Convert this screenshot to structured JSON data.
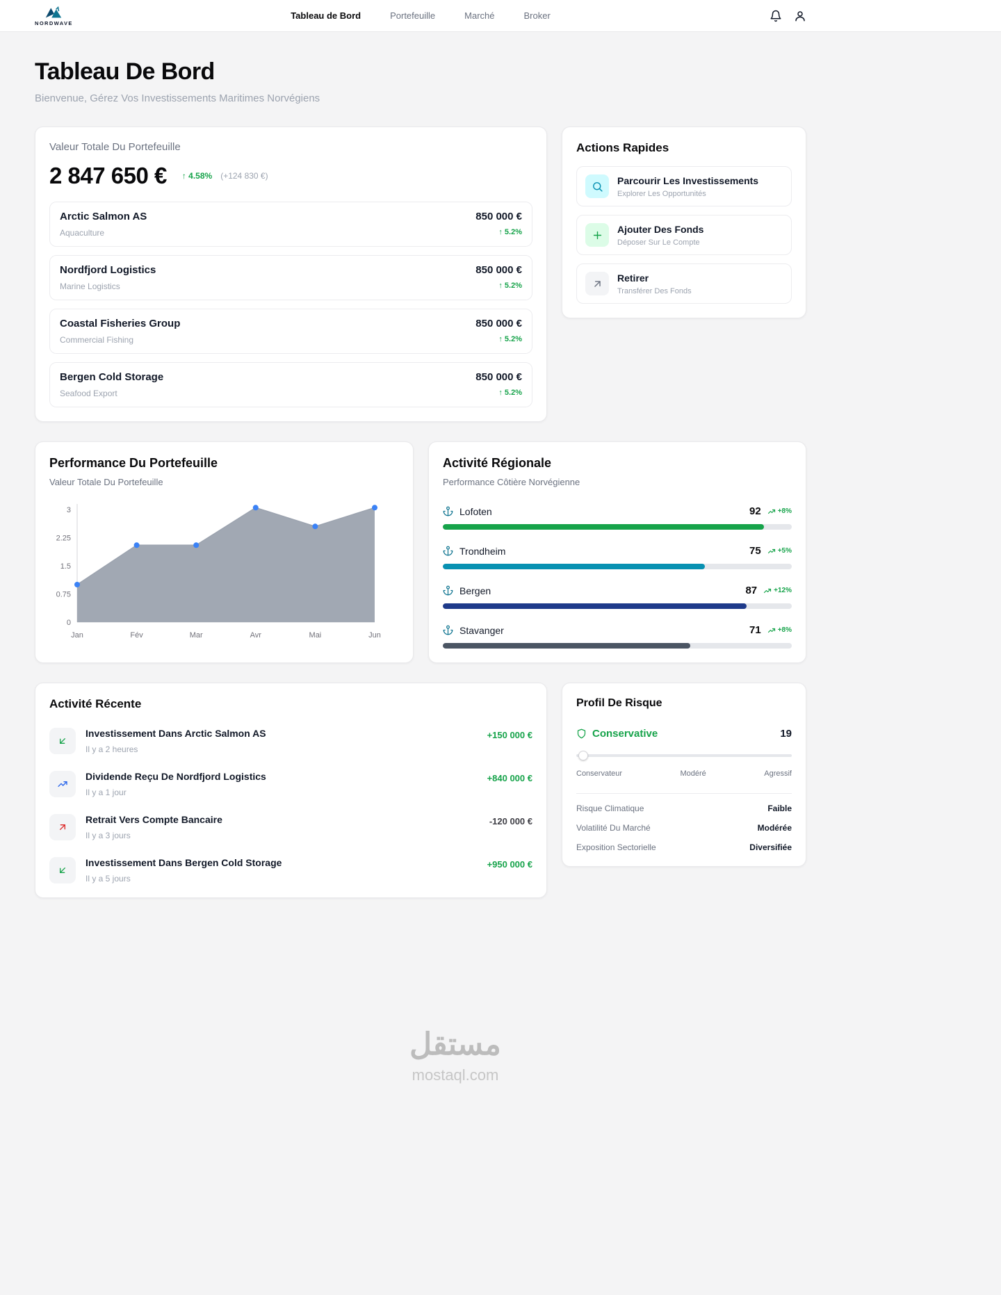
{
  "nav": {
    "brand": "NORDWAVE",
    "items": [
      {
        "label": "Tableau de Bord",
        "active": true
      },
      {
        "label": "Portefeuille",
        "active": false
      },
      {
        "label": "Marché",
        "active": false
      },
      {
        "label": "Broker",
        "active": false
      }
    ]
  },
  "header": {
    "title": "Tableau De Bord",
    "subtitle": "Bienvenue, Gérez Vos Investissements Maritimes Norvégiens"
  },
  "portfolio": {
    "label": "Valeur Totale Du Portefeuille",
    "total": "2 847 650 €",
    "change_pct": "↑ 4.58%",
    "change_abs": "(+124 830 €)",
    "holdings": [
      {
        "name": "Arctic Salmon AS",
        "sector": "Aquaculture",
        "value": "850 000 €",
        "change": "↑ 5.2%"
      },
      {
        "name": "Nordfjord Logistics",
        "sector": "Marine Logistics",
        "value": "850 000 €",
        "change": "↑ 5.2%"
      },
      {
        "name": "Coastal Fisheries Group",
        "sector": "Commercial Fishing",
        "value": "850 000 €",
        "change": "↑ 5.2%"
      },
      {
        "name": "Bergen Cold Storage",
        "sector": "Seafood Export",
        "value": "850 000 €",
        "change": "↑ 5.2%"
      }
    ]
  },
  "quick_actions": {
    "title": "Actions Rapides",
    "actions": [
      {
        "label": "Parcourir Les Investissements",
        "sublabel": "Explorer Les Opportunités",
        "icon": "search-icon",
        "icon_bg": "#cffafe",
        "icon_color": "#0891b2"
      },
      {
        "label": "Ajouter Des Fonds",
        "sublabel": "Déposer Sur Le Compte",
        "icon": "plus-icon",
        "icon_bg": "#dcfce7",
        "icon_color": "#16a34a"
      },
      {
        "label": "Retirer",
        "sublabel": "Transférer Des Fonds",
        "icon": "arrow-up-right-icon",
        "icon_bg": "#f3f4f6",
        "icon_color": "#6b7280"
      }
    ]
  },
  "performance": {
    "title": "Performance Du Portefeuille",
    "subtitle": "Valeur Totale Du Portefeuille"
  },
  "chart_data": {
    "type": "area",
    "title": "Performance Du Portefeuille",
    "x": [
      "Jan",
      "Fév",
      "Mar",
      "Avr",
      "Mai",
      "Jun"
    ],
    "values": [
      1.0,
      2.05,
      2.05,
      3.05,
      2.55,
      3.05
    ],
    "yticks": [
      0,
      0.75,
      1.5,
      2.25,
      3
    ],
    "ylim": [
      0,
      3.3
    ],
    "grid": false,
    "fill_color": "#9ca3af",
    "line_color": "#9ca3af",
    "marker_color": "#3b82f6"
  },
  "regional": {
    "title": "Activité Régionale",
    "subtitle": "Performance Côtière Norvégienne",
    "regions": [
      {
        "name": "Lofoten",
        "score": 92,
        "trend": "+8%",
        "color": "#16a34a"
      },
      {
        "name": "Trondheim",
        "score": 75,
        "trend": "+5%",
        "color": "#0891b2"
      },
      {
        "name": "Bergen",
        "score": 87,
        "trend": "+12%",
        "color": "#1e3a8a"
      },
      {
        "name": "Stavanger",
        "score": 71,
        "trend": "+8%",
        "color": "#4b5563"
      }
    ]
  },
  "recent": {
    "title": "Activité Récente",
    "items": [
      {
        "title": "Investissement Dans Arctic Salmon AS",
        "time": "Il y a 2 heures",
        "amount": "+150 000 €",
        "amount_color": "#16a34a",
        "icon": "arrow-down-left-icon",
        "icon_color": "#16a34a"
      },
      {
        "title": "Dividende Reçu De Nordfjord Logistics",
        "time": "Il y a 1 jour",
        "amount": "+840 000 €",
        "amount_color": "#16a34a",
        "icon": "trending-up-icon",
        "icon_color": "#2563eb"
      },
      {
        "title": "Retrait Vers Compte Bancaire",
        "time": "Il y a 3 jours",
        "amount": "-120 000 €",
        "amount_color": "#3f3f46",
        "icon": "arrow-up-right-icon",
        "icon_color": "#dc2626"
      },
      {
        "title": "Investissement Dans Bergen Cold Storage",
        "time": "Il y a 5 jours",
        "amount": "+950 000 €",
        "amount_color": "#16a34a",
        "icon": "arrow-down-left-icon",
        "icon_color": "#16a34a"
      }
    ]
  },
  "risk": {
    "title": "Profil De Risque",
    "level": "Conservative",
    "score": "19",
    "slider_labels": [
      "Conservateur",
      "Modéré",
      "Agressif"
    ],
    "metrics": [
      {
        "label": "Risque Climatique",
        "value": "Faible"
      },
      {
        "label": "Volatilité Du Marché",
        "value": "Modérée"
      },
      {
        "label": "Exposition Sectorielle",
        "value": "Diversifiée"
      }
    ]
  },
  "colors": {
    "background": "#f4f4f5",
    "positive": "#16a34a",
    "accent_teal": "#0e7490"
  },
  "watermark": {
    "arabic": "مستقل",
    "domain": "mostaql.com"
  }
}
